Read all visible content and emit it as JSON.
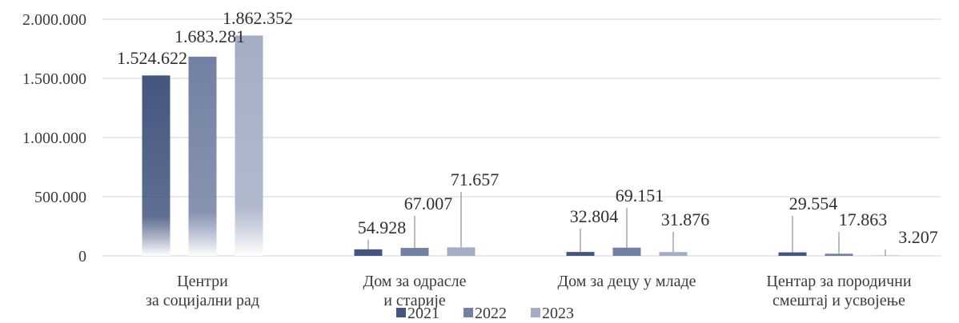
{
  "chart_data": {
    "type": "bar",
    "title": "",
    "xlabel": "",
    "ylabel": "",
    "ylim": [
      0,
      2000000
    ],
    "yticks": [
      0,
      500000,
      1000000,
      1500000,
      2000000
    ],
    "ytick_labels": [
      "0",
      "500.000",
      "1.000.000",
      "1.500.000",
      "2.000.000"
    ],
    "grid": true,
    "legend_position": "bottom",
    "categories": [
      [
        "Центри",
        "за социјални рад"
      ],
      [
        "Дом за одрасле",
        "и старије"
      ],
      [
        "Дом за децу у младе"
      ],
      [
        "Центар за породични",
        "смештај и усвојење"
      ]
    ],
    "series": [
      {
        "name": "2021",
        "color": "#44557f",
        "values": [
          1524622,
          54928,
          32804,
          29554
        ],
        "labels": [
          "1.524.622",
          "54.928",
          "32.804",
          "29.554"
        ]
      },
      {
        "name": "2022",
        "color": "#7280a3",
        "values": [
          1683281,
          67007,
          69151,
          17863
        ],
        "labels": [
          "1.683.281",
          "67.007",
          "69.151",
          "17.863"
        ]
      },
      {
        "name": "2023",
        "color": "#a3adc4",
        "values": [
          1862352,
          71657,
          31876,
          3207
        ],
        "labels": [
          "1.862.352",
          "71.657",
          "31.876",
          "3.207"
        ]
      }
    ]
  }
}
